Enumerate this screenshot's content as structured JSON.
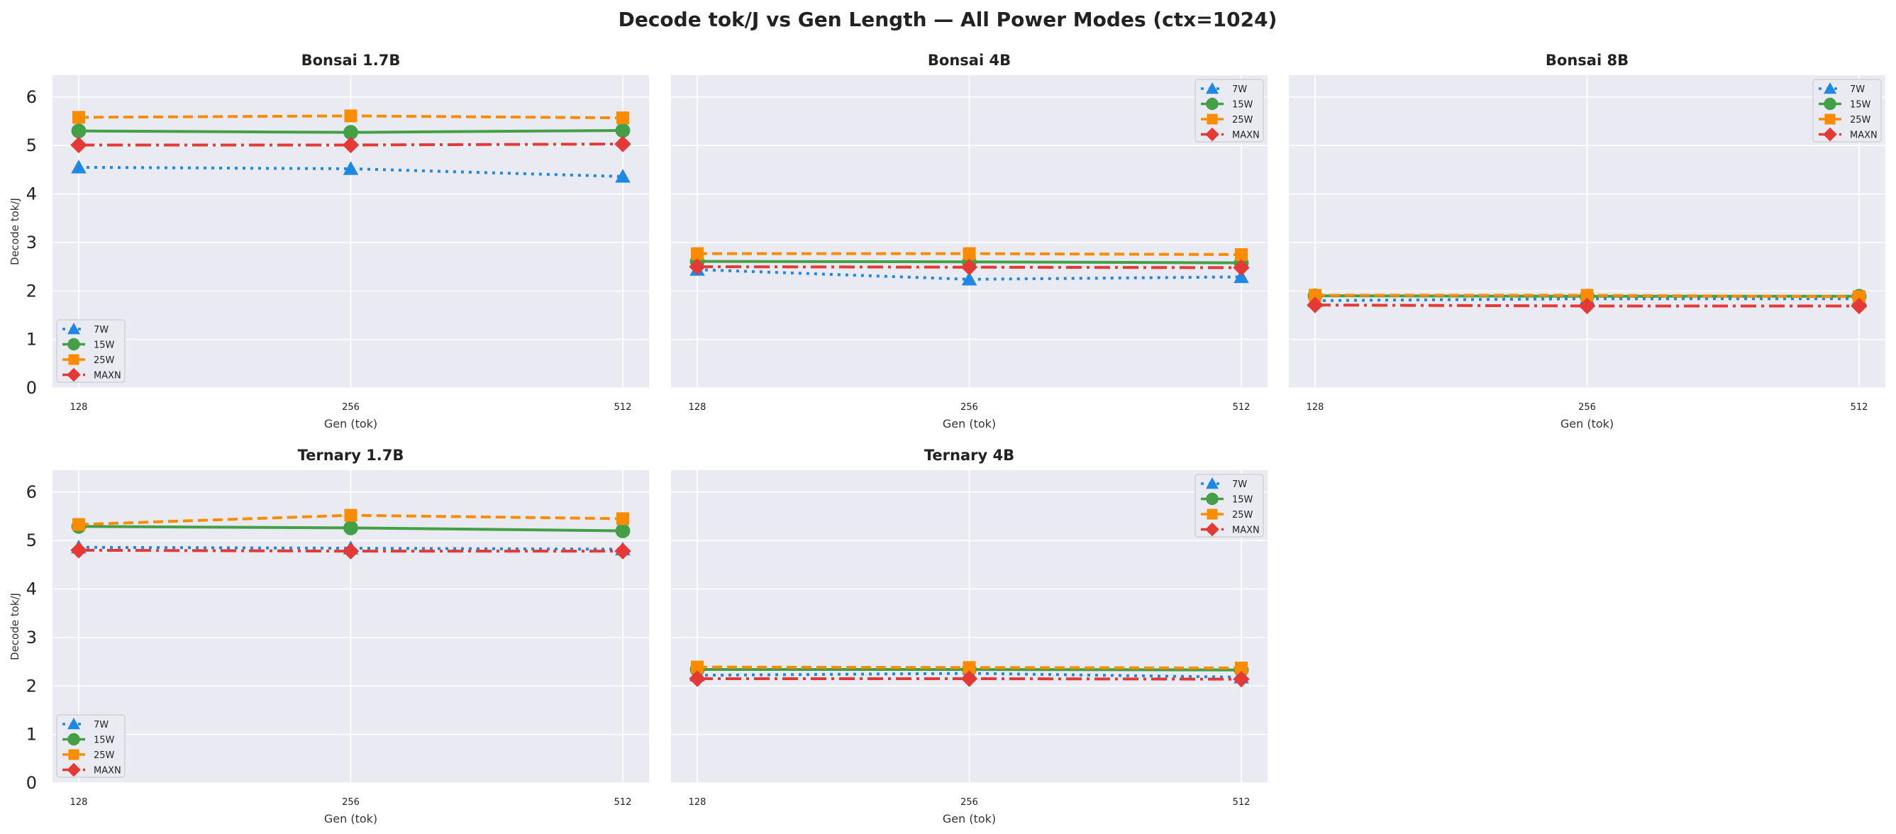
{
  "figure": {
    "title": "Decode tok/J vs Gen Length — All Power Modes (ctx=1024)"
  },
  "colors": {
    "7W": "#1e88e5",
    "15W": "#43a047",
    "25W": "#fb8c00",
    "MAXN": "#e53935",
    "panel_bg": "#eaeaf2",
    "grid": "#ffffff"
  },
  "chart_data": [
    {
      "type": "line",
      "title": "Bonsai 1.7B",
      "xlabel": "Gen (tok)",
      "ylabel": "Decode tok/J",
      "x": [
        128,
        256,
        512
      ],
      "xticks": [
        "128",
        "256",
        "512"
      ],
      "ylim": [
        0,
        6.45
      ],
      "yticks": [
        0,
        1,
        2,
        3,
        4,
        5,
        6
      ],
      "grid": true,
      "legend": "lower-left",
      "series": [
        {
          "name": "7W",
          "values": [
            4.55,
            4.52,
            4.36
          ]
        },
        {
          "name": "15W",
          "values": [
            5.3,
            5.27,
            5.31
          ]
        },
        {
          "name": "25W",
          "values": [
            5.58,
            5.61,
            5.57
          ]
        },
        {
          "name": "MAXN",
          "values": [
            5.01,
            5.01,
            5.03
          ]
        }
      ]
    },
    {
      "type": "line",
      "title": "Bonsai 4B",
      "xlabel": "Gen (tok)",
      "ylabel": "",
      "x": [
        128,
        256,
        512
      ],
      "xticks": [
        "128",
        "256",
        "512"
      ],
      "ylim": [
        0,
        6.45
      ],
      "yticks": [
        0,
        1,
        2,
        3,
        4,
        5,
        6
      ],
      "grid": true,
      "legend": "upper-right",
      "series": [
        {
          "name": "7W",
          "values": [
            2.44,
            2.24,
            2.29
          ]
        },
        {
          "name": "15W",
          "values": [
            2.61,
            2.6,
            2.58
          ]
        },
        {
          "name": "25W",
          "values": [
            2.77,
            2.77,
            2.75
          ]
        },
        {
          "name": "MAXN",
          "values": [
            2.5,
            2.49,
            2.48
          ]
        }
      ]
    },
    {
      "type": "line",
      "title": "Bonsai 8B",
      "xlabel": "Gen (tok)",
      "ylabel": "",
      "x": [
        128,
        256,
        512
      ],
      "xticks": [
        "128",
        "256",
        "512"
      ],
      "ylim": [
        0,
        6.45
      ],
      "yticks": [
        0,
        1,
        2,
        3,
        4,
        5,
        6
      ],
      "grid": true,
      "legend": "upper-right",
      "series": [
        {
          "name": "7W",
          "values": [
            1.8,
            1.84,
            1.84
          ]
        },
        {
          "name": "15W",
          "values": [
            1.9,
            1.89,
            1.89
          ]
        },
        {
          "name": "25W",
          "values": [
            1.91,
            1.91,
            1.88
          ]
        },
        {
          "name": "MAXN",
          "values": [
            1.71,
            1.69,
            1.69
          ]
        }
      ]
    },
    {
      "type": "line",
      "title": "Ternary 1.7B",
      "xlabel": "Gen (tok)",
      "ylabel": "Decode tok/J",
      "x": [
        128,
        256,
        512
      ],
      "xticks": [
        "128",
        "256",
        "512"
      ],
      "ylim": [
        0,
        6.45
      ],
      "yticks": [
        0,
        1,
        2,
        3,
        4,
        5,
        6
      ],
      "grid": true,
      "legend": "lower-left",
      "series": [
        {
          "name": "7W",
          "values": [
            4.86,
            4.84,
            4.82
          ]
        },
        {
          "name": "15W",
          "values": [
            5.29,
            5.26,
            5.2
          ]
        },
        {
          "name": "25W",
          "values": [
            5.33,
            5.52,
            5.45
          ]
        },
        {
          "name": "MAXN",
          "values": [
            4.8,
            4.78,
            4.78
          ]
        }
      ]
    },
    {
      "type": "line",
      "title": "Ternary 4B",
      "xlabel": "Gen (tok)",
      "ylabel": "",
      "x": [
        128,
        256,
        512
      ],
      "xticks": [
        "128",
        "256",
        "512"
      ],
      "ylim": [
        0,
        6.45
      ],
      "yticks": [
        0,
        1,
        2,
        3,
        4,
        5,
        6
      ],
      "grid": true,
      "legend": "upper-right",
      "series": [
        {
          "name": "7W",
          "values": [
            2.22,
            2.26,
            2.18
          ]
        },
        {
          "name": "15W",
          "values": [
            2.34,
            2.34,
            2.33
          ]
        },
        {
          "name": "25W",
          "values": [
            2.39,
            2.38,
            2.37
          ]
        },
        {
          "name": "MAXN",
          "values": [
            2.15,
            2.15,
            2.14
          ]
        }
      ]
    }
  ]
}
